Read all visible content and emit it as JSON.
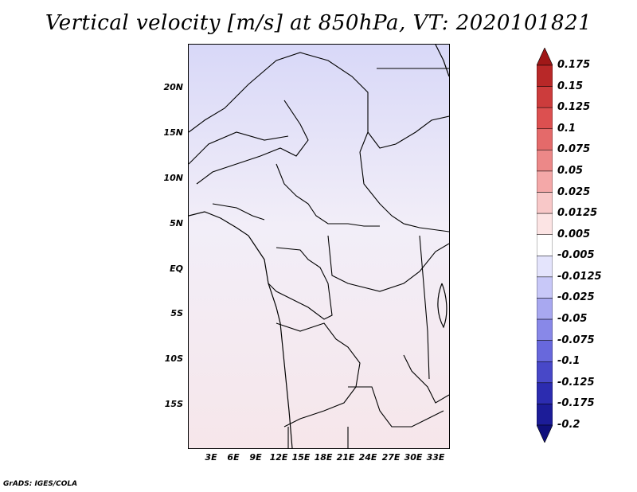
{
  "title": "Vertical velocity [m/s] at 850hPa, VT: 2020101821",
  "credit": "GrADS: IGES/COLA",
  "map": {
    "lat_labels": [
      "20N",
      "15N",
      "10N",
      "5N",
      "EQ",
      "5S",
      "10S",
      "15S"
    ],
    "lon_labels": [
      "3E",
      "6E",
      "9E",
      "12E",
      "15E",
      "18E",
      "21E",
      "24E",
      "27E",
      "30E",
      "33E"
    ]
  },
  "colorbar": {
    "labels": [
      "0.175",
      "0.15",
      "0.125",
      "0.1",
      "0.075",
      "0.05",
      "0.025",
      "0.0125",
      "0.005",
      "-0.005",
      "-0.0125",
      "-0.025",
      "-0.05",
      "-0.075",
      "-0.1",
      "-0.125",
      "-0.175",
      "-0.2"
    ],
    "colors": [
      "#a01818",
      "#b82828",
      "#cc3c3c",
      "#dc5050",
      "#e46a6a",
      "#ec8888",
      "#f4a8a8",
      "#f8c8c8",
      "#fce4e4",
      "#ffffff",
      "#e4e4fc",
      "#c8c8f8",
      "#a8a8f0",
      "#8888e8",
      "#6868dc",
      "#4848c8",
      "#2c2cb0",
      "#1c1c98",
      "#10107c"
    ]
  }
}
